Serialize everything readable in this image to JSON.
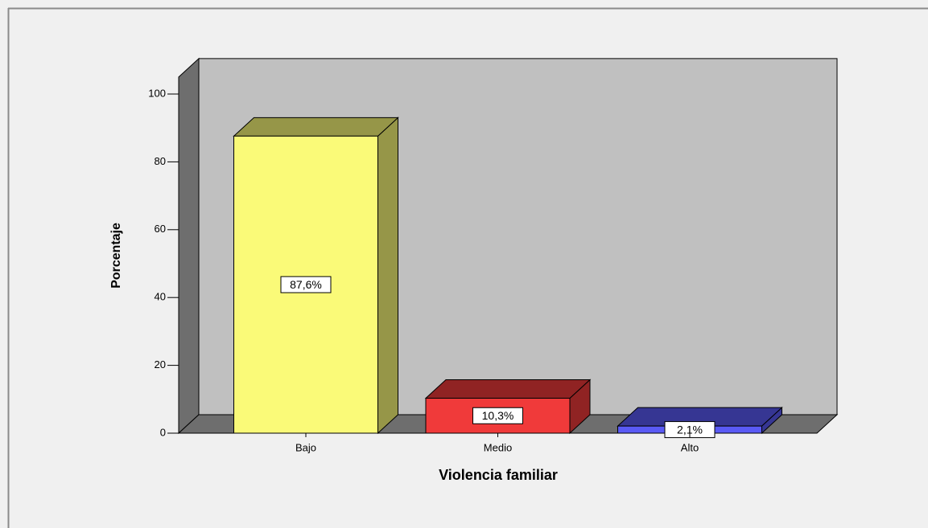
{
  "chart_data": {
    "type": "bar3d",
    "ylabel": "Porcentaje",
    "xlabel": "Violencia familiar",
    "categories": [
      "Bajo",
      "Medio",
      "Alto"
    ],
    "values": [
      87.6,
      10.3,
      2.1
    ],
    "value_labels": [
      "87,6%",
      "10,3%",
      "2,1%"
    ],
    "colors": [
      "#fafa78",
      "#f03a3a",
      "#5a5af5"
    ],
    "ylim": [
      0,
      105
    ],
    "yticks": [
      0,
      20,
      40,
      60,
      80,
      100
    ]
  }
}
